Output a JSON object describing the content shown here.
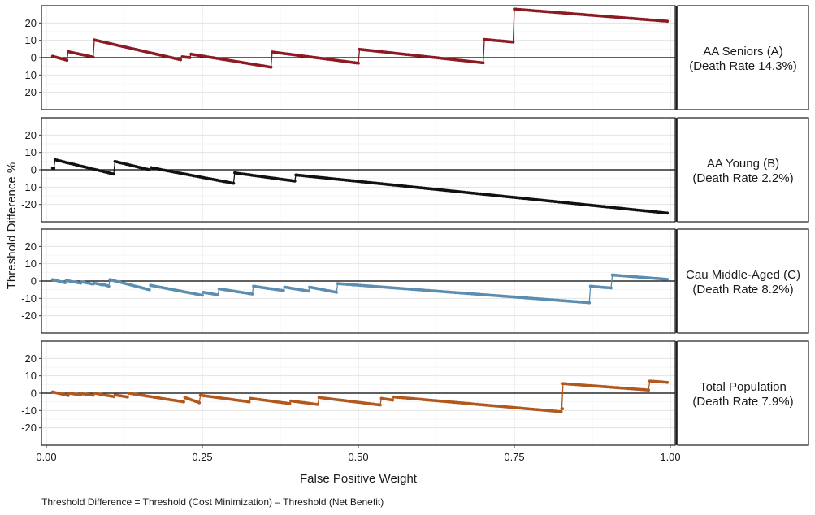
{
  "chart_data": {
    "type": "line",
    "xlabel": "False Positive Weight",
    "ylabel": "Threshold Difference %",
    "caption": "Threshold Difference = Threshold (Cost Minimization) – Threshold (Net Benefit)",
    "xlim": [
      0,
      1
    ],
    "ylim": [
      -30,
      30
    ],
    "x_ticks": [
      0.0,
      0.25,
      0.5,
      0.75,
      1.0
    ],
    "x_tick_labels": [
      "0.00",
      "0.25",
      "0.50",
      "0.75",
      "1.00"
    ],
    "y_ticks": [
      -20,
      -10,
      0,
      10,
      20
    ],
    "y_tick_labels": [
      "-20",
      "-10",
      "0",
      "10",
      "20"
    ],
    "grid": true,
    "reference_line_y": 0,
    "panels": [
      {
        "strip_line1": "AA Seniors (A)",
        "strip_line2": "(Death Rate 14.3%)",
        "color": "#8b1a22",
        "segments": [
          [
            [
              0.01,
              0.8
            ],
            [
              0.033,
              -1.5
            ]
          ],
          [
            [
              0.035,
              3.5
            ],
            [
              0.075,
              0.3
            ]
          ],
          [
            [
              0.077,
              10.2
            ],
            [
              0.215,
              -1.2
            ]
          ],
          [
            [
              0.218,
              0.5
            ],
            [
              0.23,
              0.0
            ]
          ],
          [
            [
              0.232,
              2.0
            ],
            [
              0.36,
              -5.5
            ]
          ],
          [
            [
              0.362,
              3.3
            ],
            [
              0.5,
              -3.2
            ]
          ],
          [
            [
              0.502,
              4.8
            ],
            [
              0.7,
              -3.0
            ]
          ],
          [
            [
              0.702,
              10.5
            ],
            [
              0.748,
              9.0
            ]
          ],
          [
            [
              0.75,
              28.0
            ],
            [
              0.995,
              21.0
            ]
          ]
        ]
      },
      {
        "strip_line1": "AA Young (B)",
        "strip_line2": "(Death Rate 2.2%)",
        "color": "#111111",
        "segments": [
          [
            [
              0.01,
              1.0
            ],
            [
              0.012,
              1.0
            ]
          ],
          [
            [
              0.014,
              5.8
            ],
            [
              0.108,
              -2.5
            ]
          ],
          [
            [
              0.11,
              4.8
            ],
            [
              0.165,
              0.0
            ]
          ],
          [
            [
              0.168,
              1.2
            ],
            [
              0.3,
              -7.8
            ]
          ],
          [
            [
              0.302,
              -1.8
            ],
            [
              0.398,
              -6.5
            ]
          ],
          [
            [
              0.4,
              -3.0
            ],
            [
              0.995,
              -25.0
            ]
          ]
        ]
      },
      {
        "strip_line1": "Cau Middle-Aged (C)",
        "strip_line2": "(Death Rate 8.2%)",
        "color": "#5b8db0",
        "segments": [
          [
            [
              0.01,
              0.8
            ],
            [
              0.03,
              -1.0
            ]
          ],
          [
            [
              0.032,
              0.3
            ],
            [
              0.055,
              -1.2
            ]
          ],
          [
            [
              0.057,
              -0.5
            ],
            [
              0.075,
              -1.8
            ]
          ],
          [
            [
              0.077,
              -1.2
            ],
            [
              0.09,
              -2.3
            ]
          ],
          [
            [
              0.092,
              -2.0
            ],
            [
              0.1,
              -3.0
            ]
          ],
          [
            [
              0.102,
              0.8
            ],
            [
              0.165,
              -5.0
            ]
          ],
          [
            [
              0.167,
              -2.5
            ],
            [
              0.25,
              -8.2
            ]
          ],
          [
            [
              0.252,
              -6.5
            ],
            [
              0.275,
              -8.0
            ]
          ],
          [
            [
              0.277,
              -4.5
            ],
            [
              0.33,
              -7.5
            ]
          ],
          [
            [
              0.332,
              -3.0
            ],
            [
              0.38,
              -5.5
            ]
          ],
          [
            [
              0.382,
              -3.5
            ],
            [
              0.42,
              -5.8
            ]
          ],
          [
            [
              0.422,
              -3.5
            ],
            [
              0.465,
              -6.5
            ]
          ],
          [
            [
              0.467,
              -1.5
            ],
            [
              0.87,
              -12.5
            ]
          ],
          [
            [
              0.872,
              -3.0
            ],
            [
              0.905,
              -4.0
            ]
          ],
          [
            [
              0.907,
              3.5
            ],
            [
              0.995,
              1.0
            ]
          ]
        ]
      },
      {
        "strip_line1": "Total Population",
        "strip_line2": "(Death Rate 7.9%)",
        "color": "#b0581e",
        "segments": [
          [
            [
              0.01,
              0.7
            ],
            [
              0.035,
              -1.3
            ]
          ],
          [
            [
              0.037,
              0.0
            ],
            [
              0.055,
              -1.0
            ]
          ],
          [
            [
              0.057,
              -0.3
            ],
            [
              0.075,
              -1.2
            ]
          ],
          [
            [
              0.077,
              0.0
            ],
            [
              0.108,
              -2.0
            ]
          ],
          [
            [
              0.11,
              -1.0
            ],
            [
              0.13,
              -2.2
            ]
          ],
          [
            [
              0.132,
              0.0
            ],
            [
              0.22,
              -5.0
            ]
          ],
          [
            [
              0.222,
              -2.5
            ],
            [
              0.245,
              -5.5
            ]
          ],
          [
            [
              0.247,
              -1.2
            ],
            [
              0.325,
              -5.0
            ]
          ],
          [
            [
              0.327,
              -3.0
            ],
            [
              0.39,
              -6.0
            ]
          ],
          [
            [
              0.392,
              -4.5
            ],
            [
              0.435,
              -6.5
            ]
          ],
          [
            [
              0.437,
              -2.5
            ],
            [
              0.535,
              -6.8
            ]
          ],
          [
            [
              0.537,
              -3.0
            ],
            [
              0.555,
              -4.0
            ]
          ],
          [
            [
              0.557,
              -2.2
            ],
            [
              0.825,
              -10.7
            ]
          ],
          [
            [
              0.827,
              -9.0
            ],
            [
              0.826,
              -9.0
            ]
          ],
          [
            [
              0.828,
              5.5
            ],
            [
              0.965,
              1.8
            ]
          ],
          [
            [
              0.967,
              7.0
            ],
            [
              0.995,
              6.2
            ]
          ]
        ]
      }
    ]
  }
}
